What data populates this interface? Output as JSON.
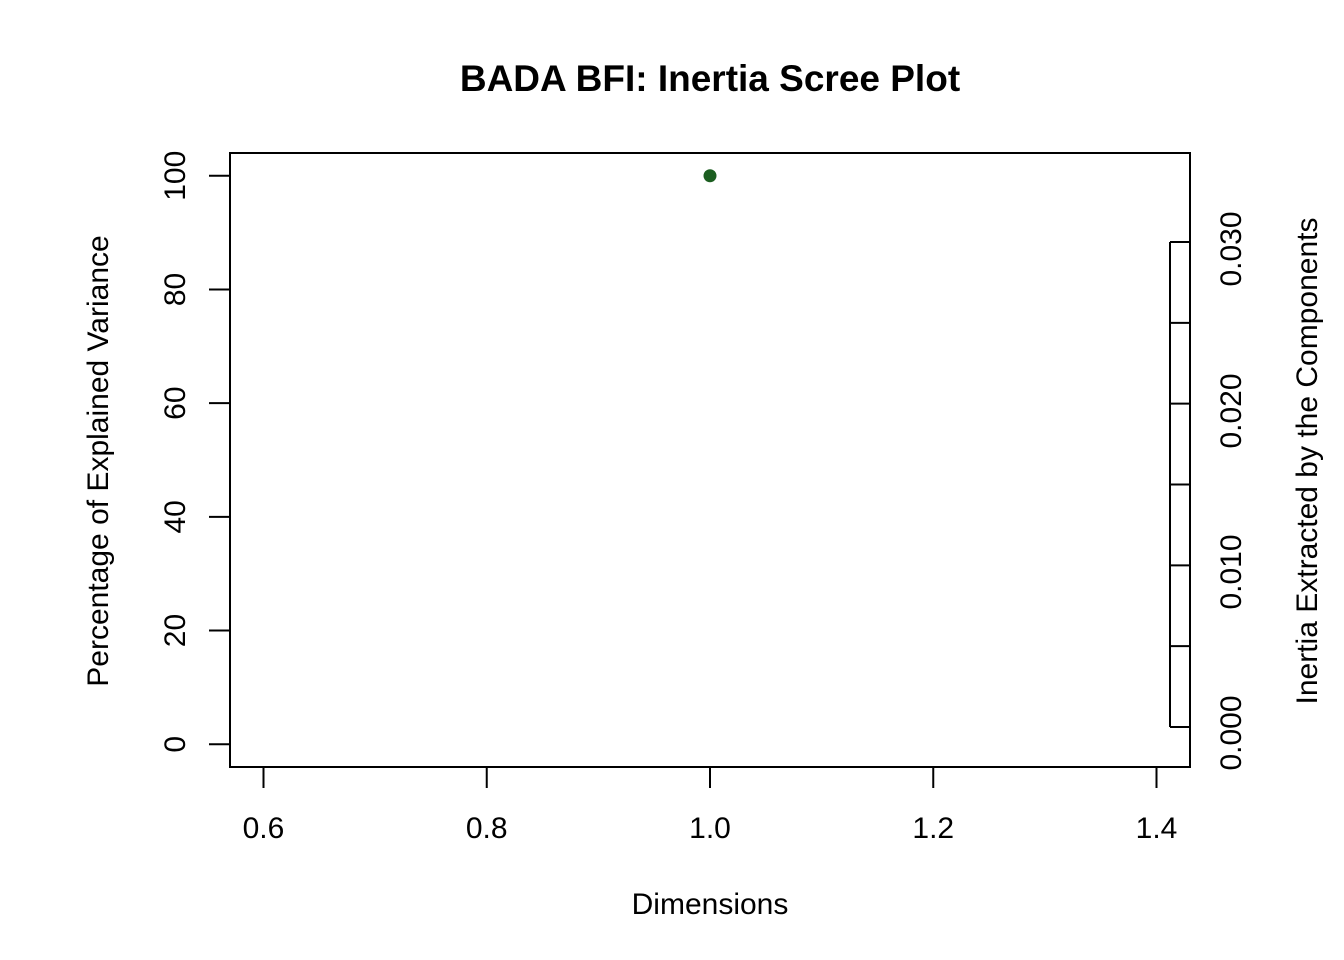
{
  "chart_data": {
    "type": "scatter",
    "title": "BADA BFI: Inertia Scree Plot",
    "xlabel": "Dimensions",
    "ylabel": "Percentage of Explained Variance",
    "y2label": "Inertia Extracted by the Components",
    "xlim": [
      0.57,
      1.43
    ],
    "ylim": [
      -4,
      104
    ],
    "x_ticks": [
      "0.6",
      "0.8",
      "1.0",
      "1.2",
      "1.4"
    ],
    "y_ticks": [
      "0",
      "20",
      "40",
      "60",
      "80",
      "100"
    ],
    "y2_ticks": [
      "0.000",
      "0.010",
      "0.020",
      "0.030"
    ],
    "y2_scale_max": 0.03,
    "points": [
      {
        "x": 1.0,
        "y": 100
      }
    ],
    "point_color": "#1b5e20",
    "grid": false,
    "legend": "none"
  }
}
